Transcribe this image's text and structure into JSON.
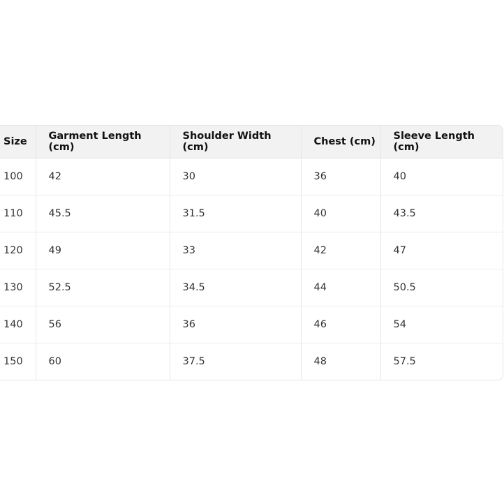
{
  "table": {
    "headers": [
      "Size",
      "Garment Length (cm)",
      "Shoulder Width (cm)",
      "Chest (cm)",
      "Sleeve Length (cm)"
    ],
    "rows": [
      [
        "100",
        "42",
        "30",
        "36",
        "40"
      ],
      [
        "110",
        "45.5",
        "31.5",
        "40",
        "43.5"
      ],
      [
        "120",
        "49",
        "33",
        "42",
        "47"
      ],
      [
        "130",
        "52.5",
        "34.5",
        "44",
        "50.5"
      ],
      [
        "140",
        "56",
        "36",
        "46",
        "54"
      ],
      [
        "150",
        "60",
        "37.5",
        "48",
        "57.5"
      ]
    ]
  }
}
